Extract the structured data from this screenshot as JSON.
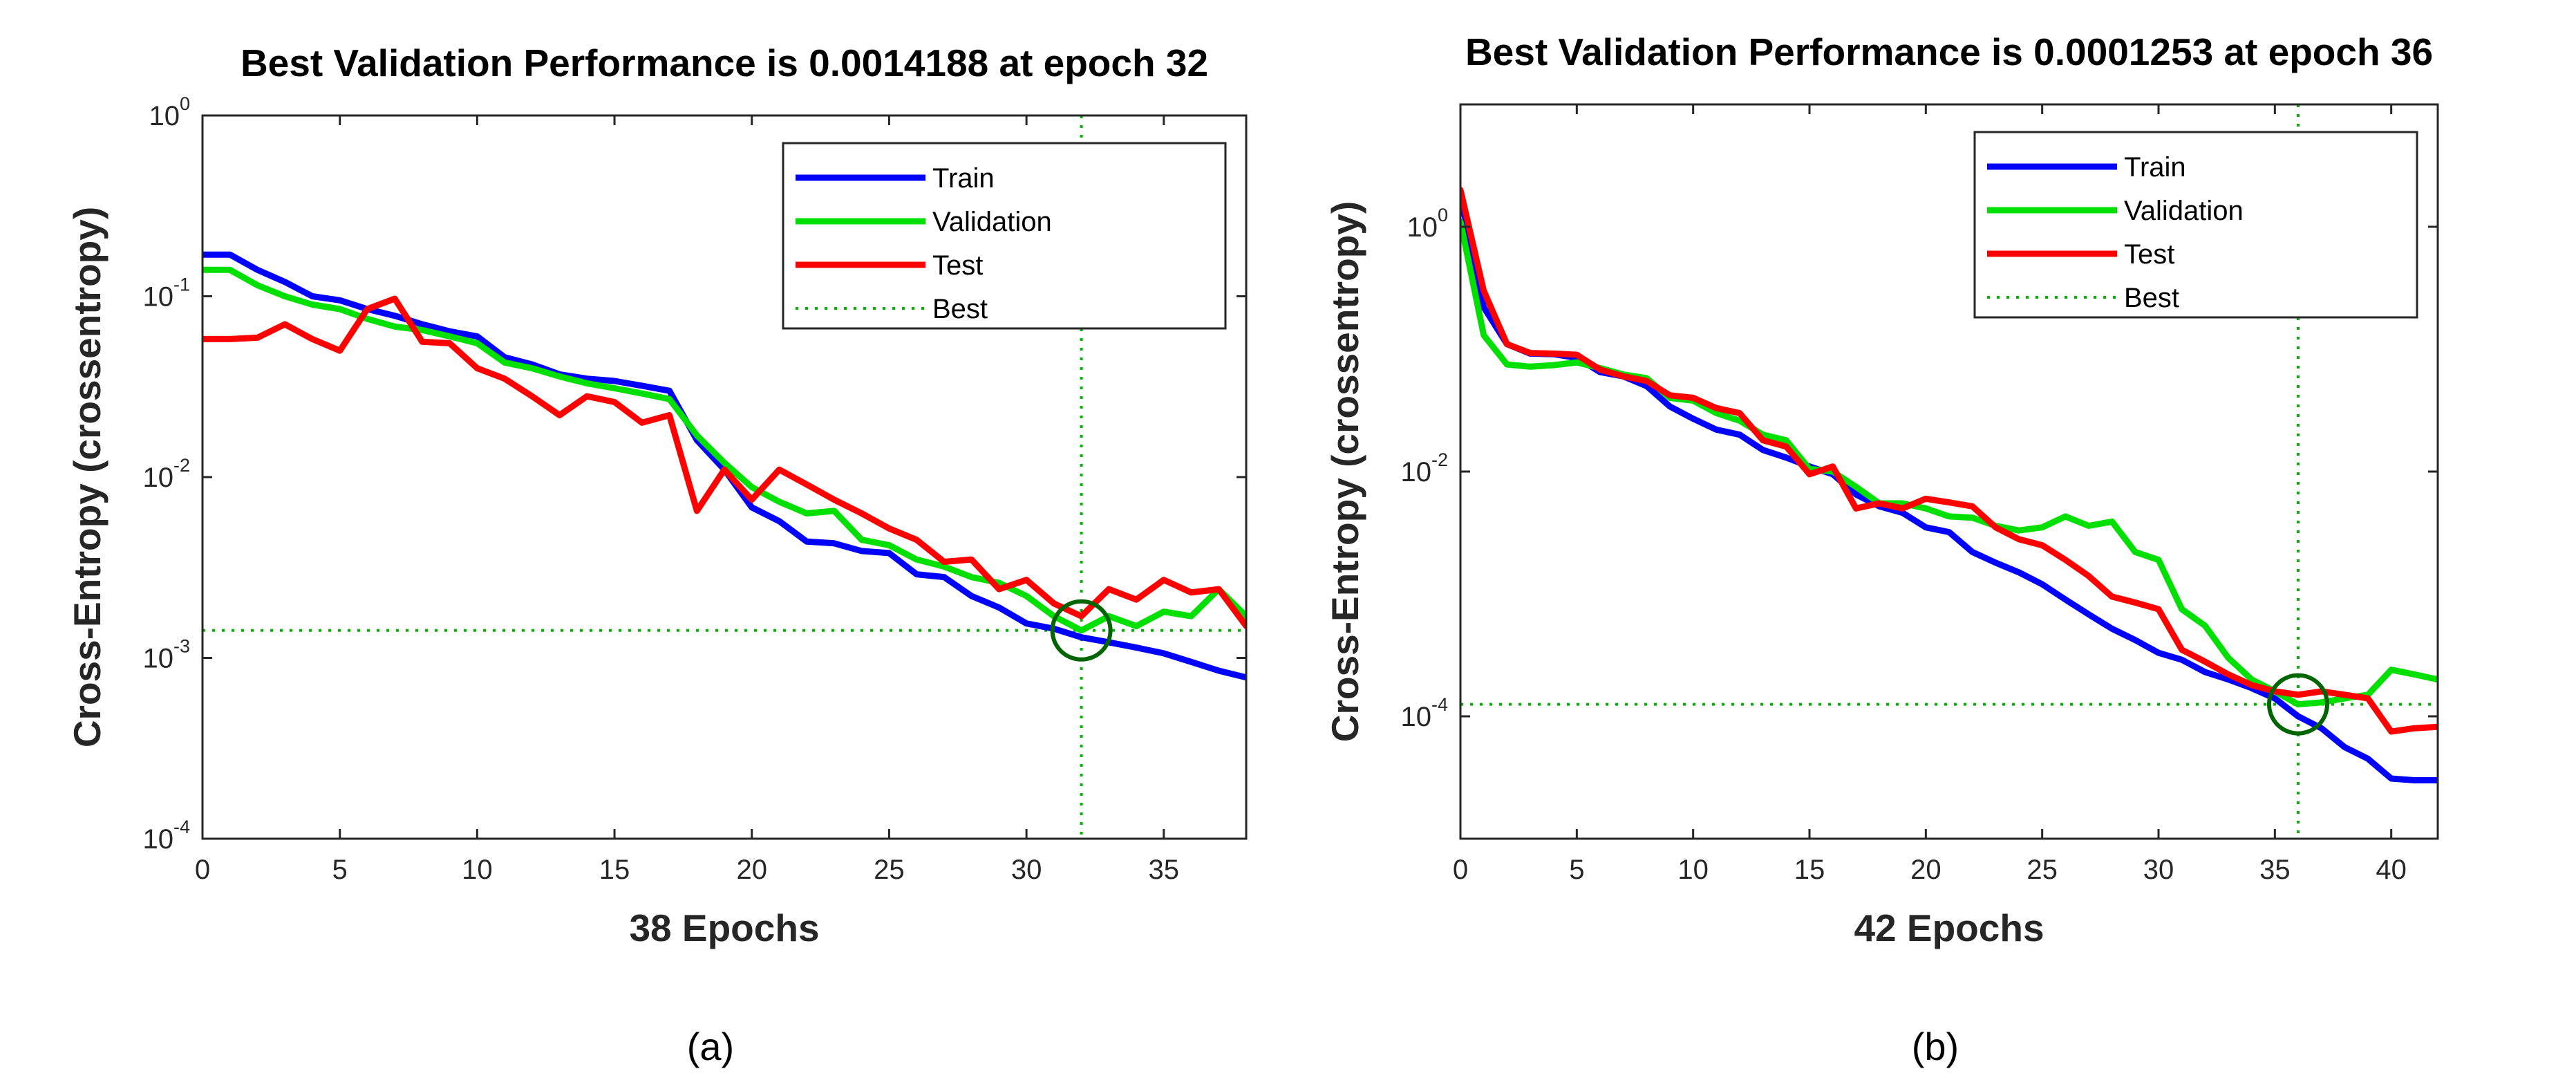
{
  "chart_data": [
    {
      "type": "line",
      "title": "Best Validation Performance is 0.0014188 at epoch 32",
      "xlabel": "38 Epochs",
      "ylabel": "Cross-Entropy  (crossentropy)",
      "caption": "(a)",
      "y_scale": "log",
      "xlim": [
        0,
        38
      ],
      "ylim": [
        0.0001,
        1
      ],
      "x_ticks": [
        0,
        5,
        10,
        15,
        20,
        25,
        30,
        35
      ],
      "y_ticks": [
        {
          "value": 1,
          "base": "10",
          "exp": "0"
        },
        {
          "value": 0.1,
          "base": "10",
          "exp": "-1"
        },
        {
          "value": 0.01,
          "base": "10",
          "exp": "-2"
        },
        {
          "value": 0.001,
          "base": "10",
          "exp": "-3"
        },
        {
          "value": 0.0001,
          "base": "10",
          "exp": "-4"
        }
      ],
      "grid": false,
      "legend_position": "top-right",
      "best": {
        "epoch": 32,
        "value": 0.0014188
      },
      "series": [
        {
          "name": "Train",
          "color": "#0000ff",
          "x": [
            0,
            1,
            2,
            3,
            4,
            5,
            6,
            7,
            8,
            9,
            10,
            11,
            12,
            13,
            14,
            15,
            16,
            17,
            18,
            19,
            20,
            21,
            22,
            23,
            24,
            25,
            26,
            27,
            28,
            29,
            30,
            31,
            32,
            33,
            34,
            35,
            36,
            37,
            38
          ],
          "y": [
            0.17,
            0.17,
            0.14,
            0.12,
            0.1,
            0.095,
            0.085,
            0.078,
            0.07,
            0.064,
            0.06,
            0.046,
            0.042,
            0.037,
            0.035,
            0.034,
            0.032,
            0.03,
            0.016,
            0.011,
            0.0068,
            0.0057,
            0.0044,
            0.0043,
            0.0039,
            0.0038,
            0.0029,
            0.0028,
            0.0022,
            0.0019,
            0.00155,
            0.00145,
            0.0013,
            0.00122,
            0.00114,
            0.00106,
            0.00095,
            0.00085,
            0.00078
          ]
        },
        {
          "name": "Validation",
          "color": "#00e000",
          "x": [
            0,
            1,
            2,
            3,
            4,
            5,
            6,
            7,
            8,
            9,
            10,
            11,
            12,
            13,
            14,
            15,
            16,
            17,
            18,
            19,
            20,
            21,
            22,
            23,
            24,
            25,
            26,
            27,
            28,
            29,
            30,
            31,
            32,
            33,
            34,
            35,
            36,
            37,
            38
          ],
          "y": [
            0.14,
            0.14,
            0.115,
            0.1,
            0.09,
            0.085,
            0.075,
            0.068,
            0.065,
            0.06,
            0.055,
            0.043,
            0.04,
            0.036,
            0.033,
            0.031,
            0.029,
            0.027,
            0.017,
            0.012,
            0.0088,
            0.0073,
            0.0063,
            0.0065,
            0.0045,
            0.0042,
            0.0035,
            0.0032,
            0.0028,
            0.0026,
            0.0022,
            0.0017,
            0.0014188,
            0.0017,
            0.0015,
            0.0018,
            0.0017,
            0.0024,
            0.0017
          ]
        },
        {
          "name": "Test",
          "color": "#ff0000",
          "x": [
            0,
            1,
            2,
            3,
            4,
            5,
            6,
            7,
            8,
            9,
            10,
            11,
            12,
            13,
            14,
            15,
            16,
            17,
            18,
            19,
            20,
            21,
            22,
            23,
            24,
            25,
            26,
            27,
            28,
            29,
            30,
            31,
            32,
            33,
            34,
            35,
            36,
            37,
            38
          ],
          "y": [
            0.058,
            0.058,
            0.059,
            0.07,
            0.058,
            0.05,
            0.085,
            0.097,
            0.056,
            0.055,
            0.04,
            0.035,
            0.028,
            0.022,
            0.028,
            0.026,
            0.02,
            0.022,
            0.0065,
            0.011,
            0.0075,
            0.011,
            0.0091,
            0.0075,
            0.0063,
            0.0052,
            0.0045,
            0.0034,
            0.0035,
            0.0024,
            0.0027,
            0.002,
            0.0017,
            0.0024,
            0.0021,
            0.0027,
            0.0023,
            0.0024,
            0.0015
          ]
        }
      ]
    },
    {
      "type": "line",
      "title": "Best Validation Performance is 0.0001253 at epoch 36",
      "xlabel": "42 Epochs",
      "ylabel": "Cross-Entropy  (crossentropy)",
      "caption": "(b)",
      "y_scale": "log",
      "xlim": [
        0,
        42
      ],
      "ylim": [
        1e-05,
        10
      ],
      "x_ticks": [
        0,
        5,
        10,
        15,
        20,
        25,
        30,
        35,
        40
      ],
      "y_ticks": [
        {
          "value": 1,
          "base": "10",
          "exp": "0"
        },
        {
          "value": 0.01,
          "base": "10",
          "exp": "-2"
        },
        {
          "value": 0.0001,
          "base": "10",
          "exp": "-4"
        }
      ],
      "grid": false,
      "legend_position": "top-right",
      "best": {
        "epoch": 36,
        "value": 0.0001253
      },
      "series": [
        {
          "name": "Train",
          "color": "#0000ff",
          "x": [
            0,
            1,
            2,
            3,
            4,
            5,
            6,
            7,
            8,
            9,
            10,
            11,
            12,
            13,
            14,
            15,
            16,
            17,
            18,
            19,
            20,
            21,
            22,
            23,
            24,
            25,
            26,
            27,
            28,
            29,
            30,
            31,
            32,
            33,
            34,
            35,
            36,
            37,
            38,
            39,
            40,
            41,
            42
          ],
          "y": [
            1.8,
            0.22,
            0.11,
            0.092,
            0.091,
            0.085,
            0.065,
            0.06,
            0.05,
            0.034,
            0.027,
            0.022,
            0.02,
            0.015,
            0.013,
            0.011,
            0.0095,
            0.0065,
            0.0052,
            0.0046,
            0.0035,
            0.0032,
            0.0022,
            0.0018,
            0.0015,
            0.0012,
            0.0009,
            0.00068,
            0.00052,
            0.00042,
            0.00033,
            0.00029,
            0.00023,
            0.0002,
            0.00017,
            0.00014,
            0.0001,
            8e-05,
            5.6e-05,
            4.5e-05,
            3.1e-05,
            3e-05,
            3e-05
          ]
        },
        {
          "name": "Validation",
          "color": "#00e000",
          "x": [
            0,
            1,
            2,
            3,
            4,
            5,
            6,
            7,
            8,
            9,
            10,
            11,
            12,
            13,
            14,
            15,
            16,
            17,
            18,
            19,
            20,
            21,
            22,
            23,
            24,
            25,
            26,
            27,
            28,
            29,
            30,
            31,
            32,
            33,
            34,
            35,
            36,
            37,
            38,
            39,
            40,
            41,
            42
          ],
          "y": [
            1.1,
            0.13,
            0.075,
            0.072,
            0.074,
            0.078,
            0.07,
            0.062,
            0.058,
            0.04,
            0.038,
            0.03,
            0.026,
            0.02,
            0.018,
            0.0105,
            0.01,
            0.0075,
            0.0055,
            0.0055,
            0.005,
            0.0043,
            0.0042,
            0.0036,
            0.0033,
            0.0035,
            0.0043,
            0.0036,
            0.0039,
            0.0022,
            0.0019,
            0.00075,
            0.00055,
            0.0003,
            0.0002,
            0.00016,
            0.0001253,
            0.00013,
            0.00014,
            0.00015,
            0.00024,
            0.00022,
            0.0002
          ]
        },
        {
          "name": "Test",
          "color": "#ff0000",
          "x": [
            0,
            1,
            2,
            3,
            4,
            5,
            6,
            7,
            8,
            9,
            10,
            11,
            12,
            13,
            14,
            15,
            16,
            17,
            18,
            19,
            20,
            21,
            22,
            23,
            24,
            25,
            26,
            27,
            28,
            29,
            30,
            31,
            32,
            33,
            34,
            35,
            36,
            37,
            38,
            39,
            40,
            41,
            42
          ],
          "y": [
            2.0,
            0.3,
            0.11,
            0.093,
            0.092,
            0.09,
            0.068,
            0.06,
            0.055,
            0.042,
            0.04,
            0.033,
            0.03,
            0.018,
            0.016,
            0.0095,
            0.011,
            0.005,
            0.0055,
            0.005,
            0.006,
            0.0056,
            0.0052,
            0.0035,
            0.0028,
            0.0025,
            0.0019,
            0.0014,
            0.00095,
            0.00085,
            0.00075,
            0.00035,
            0.00028,
            0.00022,
            0.00018,
            0.00016,
            0.00015,
            0.00016,
            0.00015,
            0.00014,
            7.5e-05,
            8e-05,
            8.2e-05
          ]
        }
      ]
    }
  ],
  "legend": {
    "best_label": "Best"
  }
}
